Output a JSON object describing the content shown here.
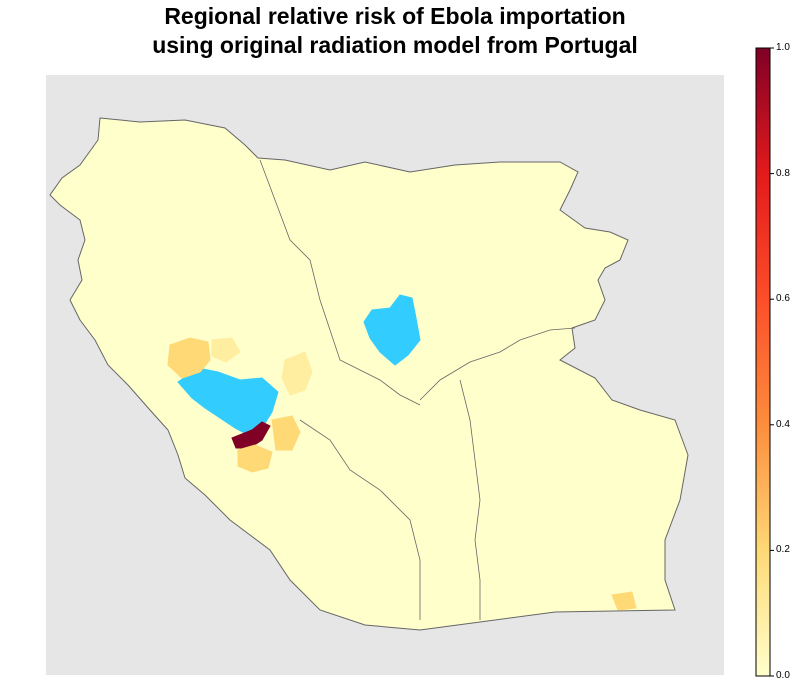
{
  "title": {
    "line1": "Regional relative risk of Ebola importation",
    "line2": "using original radiation model from Portugal"
  },
  "colorbar": {
    "ticks": [
      "0.0",
      "0.2",
      "0.4",
      "0.6",
      "0.8",
      "1.0"
    ],
    "range": [
      0,
      1
    ],
    "stops": [
      {
        "value": 0.0,
        "color": "#ffffcc"
      },
      {
        "value": 0.2,
        "color": "#fed976"
      },
      {
        "value": 0.4,
        "color": "#fd8d3c"
      },
      {
        "value": 0.6,
        "color": "#fc4e2a"
      },
      {
        "value": 0.8,
        "color": "#e31a1c"
      },
      {
        "value": 1.0,
        "color": "#800026"
      }
    ]
  },
  "colors": {
    "background": "#e6e6e6",
    "low_risk": "#ffffcc",
    "medium_risk": "#fed976",
    "high_risk": "#800026",
    "source_region": "#33ccff",
    "border": "#555555"
  }
}
